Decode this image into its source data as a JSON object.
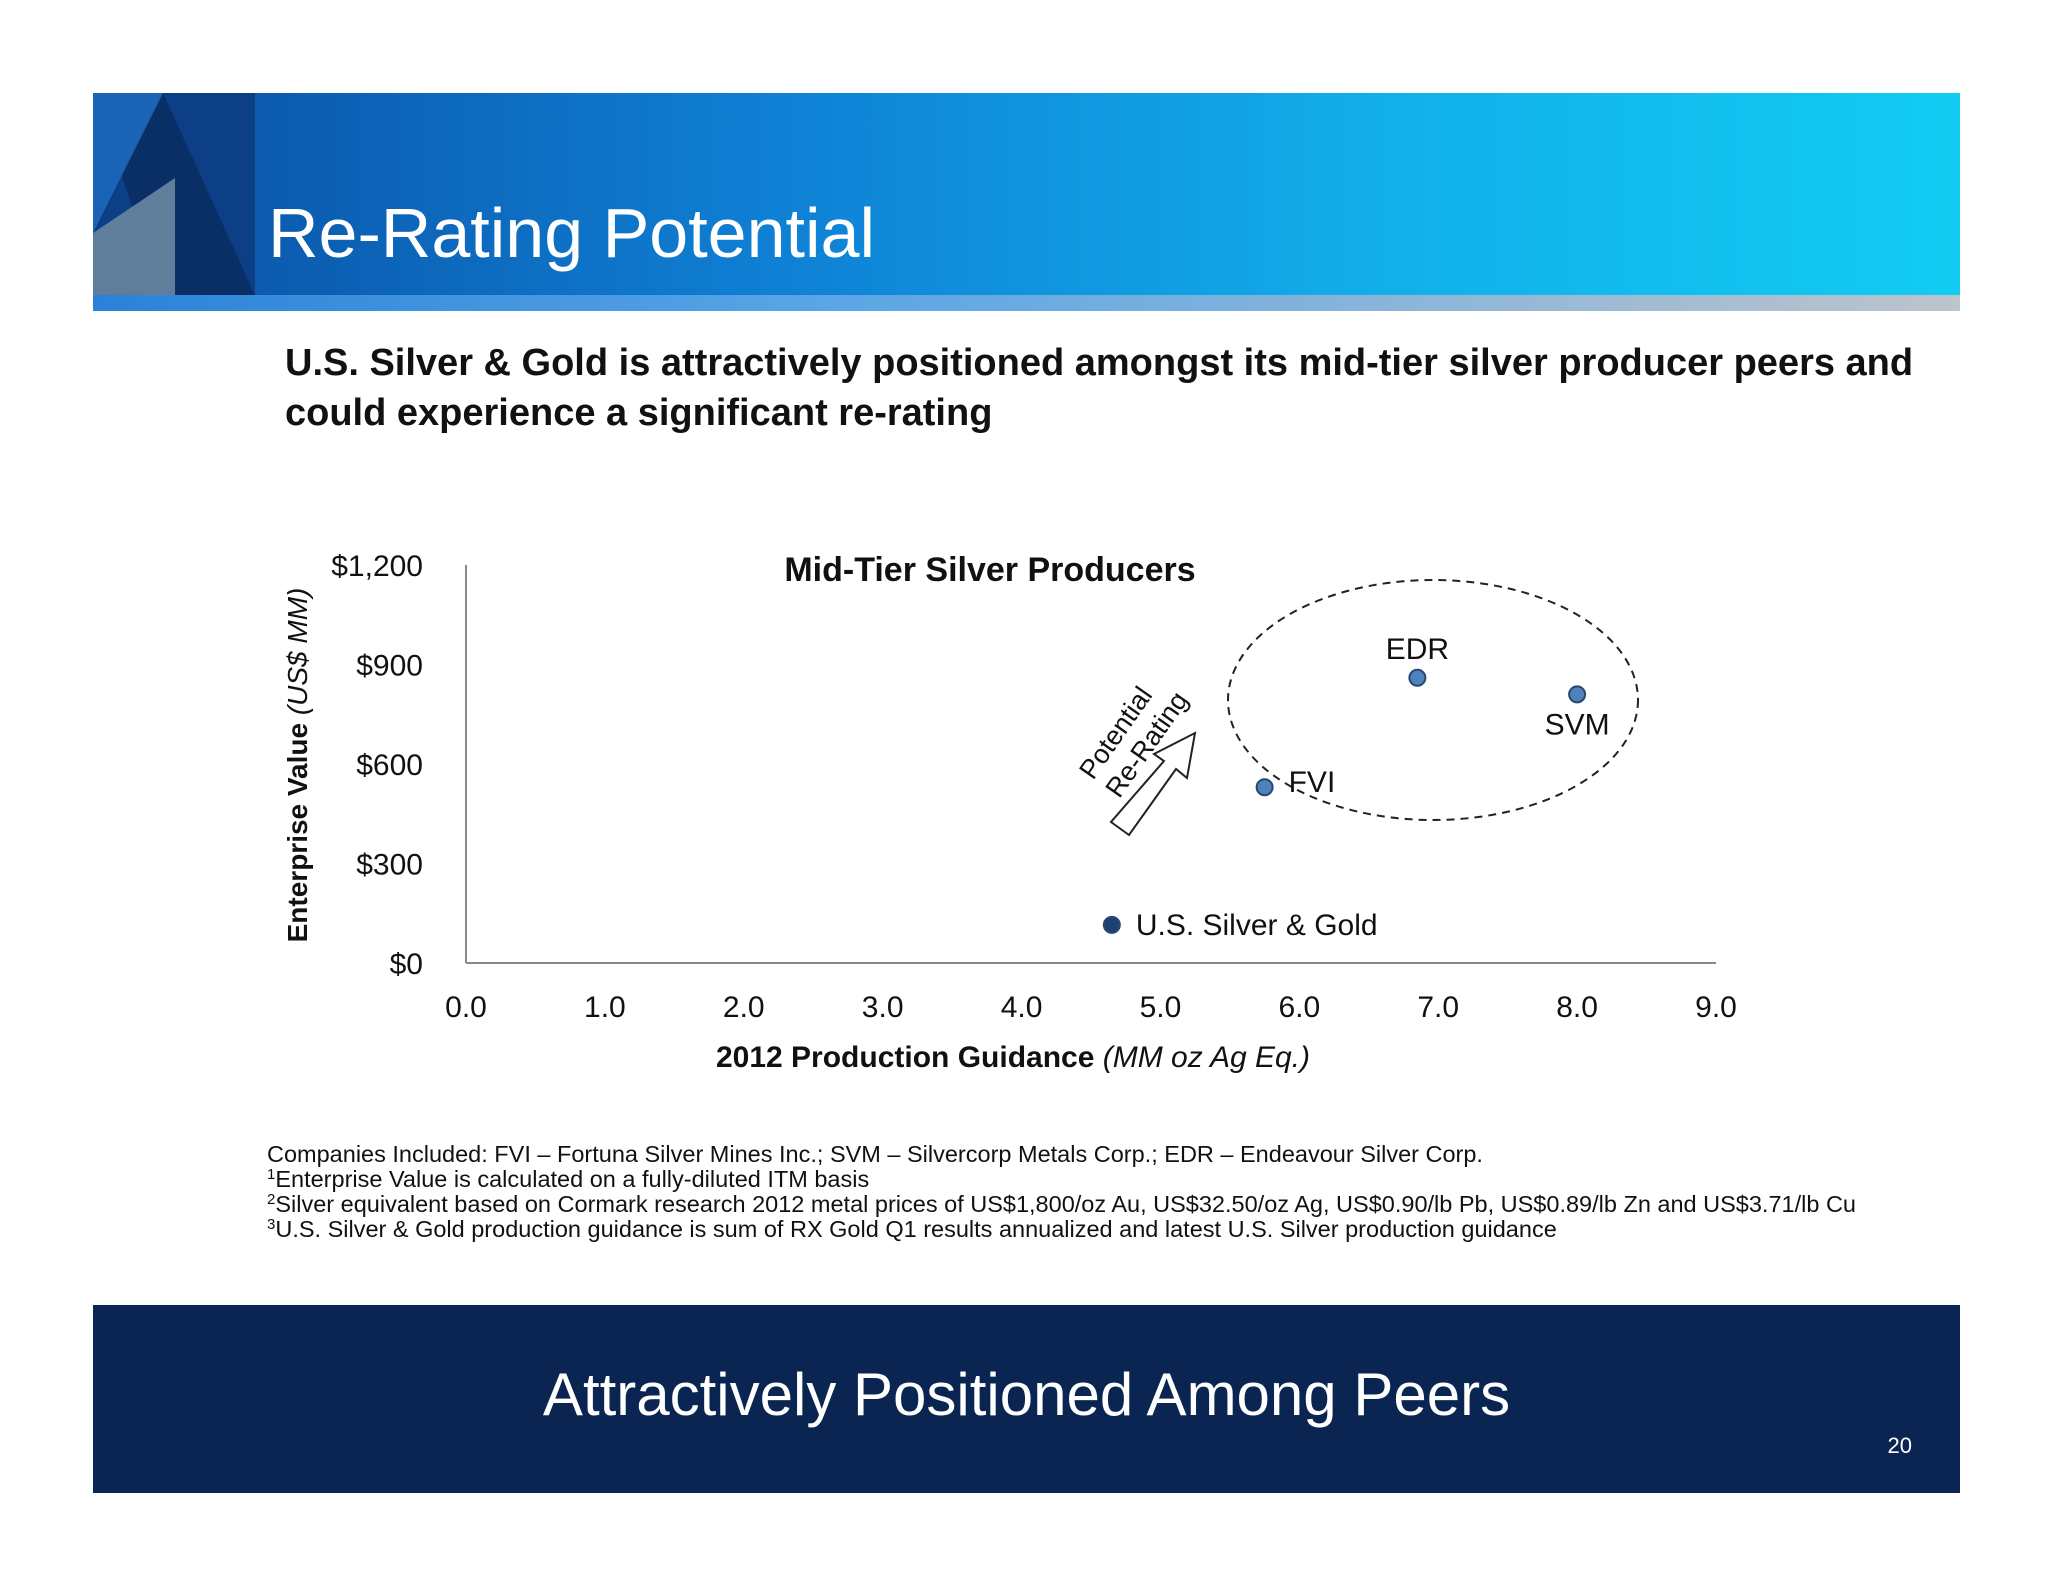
{
  "header": {
    "title": "Re-Rating Potential"
  },
  "subtitle": "U.S. Silver & Gold is attractively positioned amongst its mid-tier silver producer peers and could experience a significant re-rating",
  "chart_data": {
    "type": "scatter",
    "title": "Mid-Tier Silver Producers",
    "xlabel": "2012 Production Guidance",
    "xlabel_unit": "(MM oz Ag Eq.)",
    "ylabel": "Enterprise Value",
    "ylabel_unit": "(US$ MM)",
    "xlim": [
      0,
      9
    ],
    "ylim": [
      0,
      1200
    ],
    "x_ticks": [
      "0.0",
      "1.0",
      "2.0",
      "3.0",
      "4.0",
      "5.0",
      "6.0",
      "7.0",
      "8.0",
      "9.0"
    ],
    "x_tick_values": [
      0,
      1,
      2,
      3,
      4,
      5,
      6,
      7,
      8,
      9
    ],
    "y_ticks": [
      "$0",
      "$300",
      "$600",
      "$900",
      "$1,200"
    ],
    "y_tick_values": [
      0,
      300,
      600,
      900,
      1200
    ],
    "grid": false,
    "points": [
      {
        "label": "U.S. Silver & Gold",
        "x": 4.65,
        "y": 115,
        "color": "#1f3f73"
      },
      {
        "label": "FVI",
        "x": 5.75,
        "y": 530,
        "color": "#4f81bd"
      },
      {
        "label": "EDR",
        "x": 6.85,
        "y": 860,
        "color": "#4f81bd"
      },
      {
        "label": "SVM",
        "x": 8.0,
        "y": 810,
        "color": "#4f81bd"
      }
    ],
    "annotation": {
      "line1": "Potential",
      "line2": "Re-Rating"
    }
  },
  "footnotes": {
    "companies": "Companies Included: FVI – Fortuna Silver Mines Inc.; SVM – Silvercorp Metals Corp.; EDR – Endeavour Silver Corp.",
    "note1_marker": "1",
    "note1": "Enterprise Value is calculated on a fully-diluted ITM basis",
    "note2_marker": "2",
    "note2": "Silver equivalent based on Cormark research 2012 metal prices of US$1,800/oz Au, US$32.50/oz Ag, US$0.90/lb Pb, US$0.89/lb Zn and US$3.71/lb Cu",
    "note3_marker": "3",
    "note3": "U.S. Silver & Gold production guidance is sum of RX Gold Q1 results annualized and latest U.S. Silver production guidance"
  },
  "footer": {
    "tagline": "Attractively Positioned Among Peers",
    "page_number": "20"
  },
  "colors": {
    "header_gradient": [
      "#0b4fa3",
      "#12ccf2"
    ],
    "footer": "#0b2553",
    "point": "#4f81bd",
    "point_highlight": "#1f3f73"
  }
}
